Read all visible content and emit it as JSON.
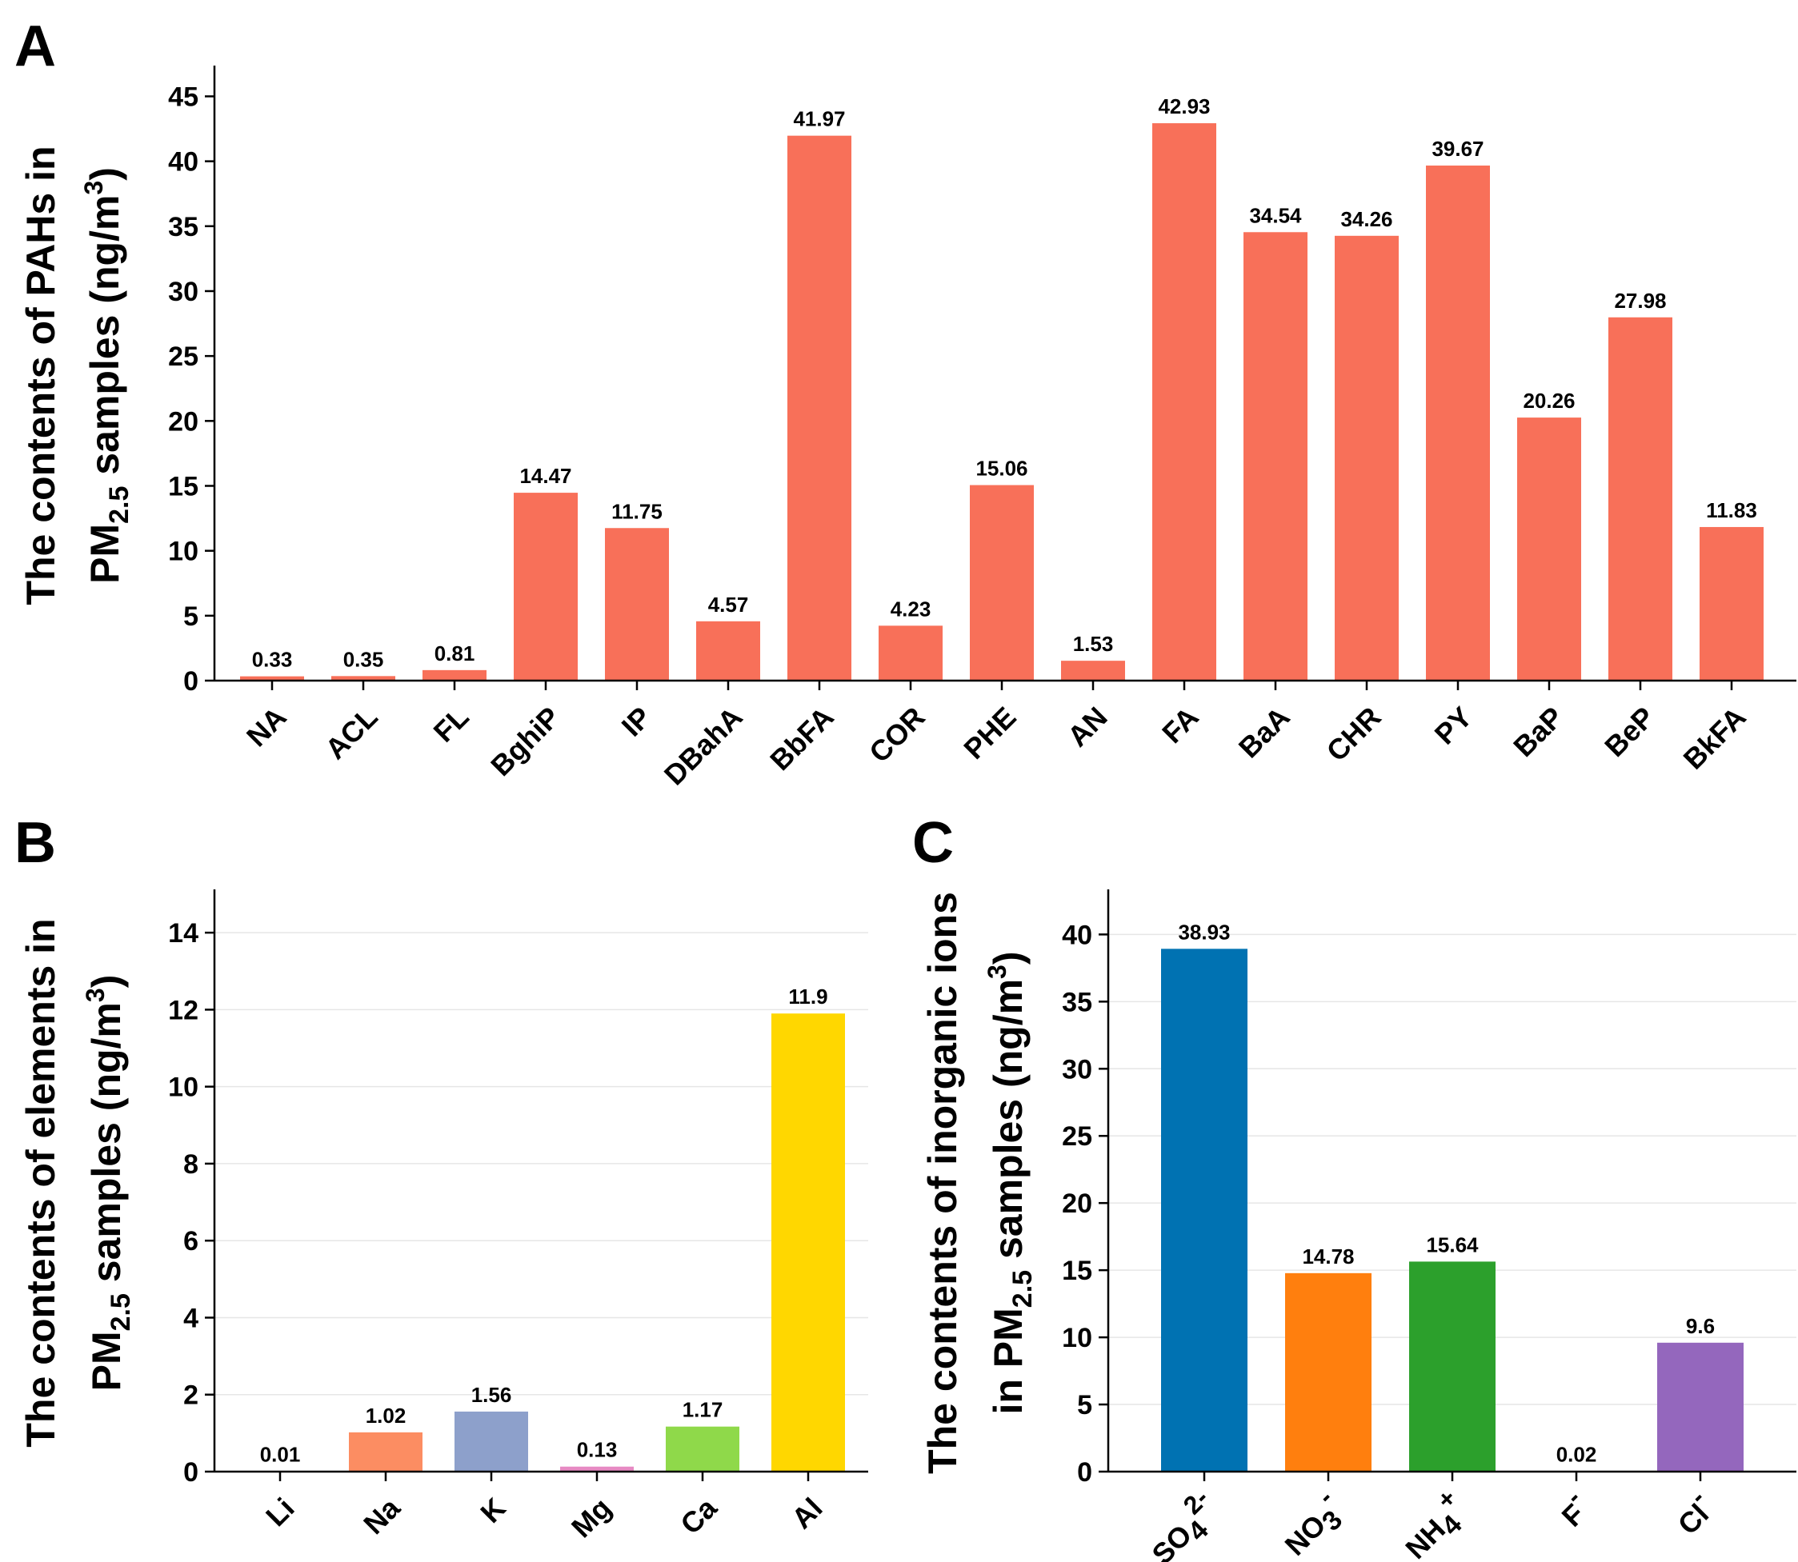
{
  "chart_data": [
    {
      "panel": "A",
      "type": "bar",
      "ylabel_line1": "The contents of PAHs in",
      "ylabel_line2_pre": "PM",
      "ylabel_line2_sub": "2.5",
      "ylabel_line2_mid": " samples (ng/m",
      "ylabel_line2_sup": "3",
      "ylabel_line2_post": ")",
      "ylim": [
        0,
        47
      ],
      "yticks": [
        0,
        5,
        10,
        15,
        20,
        25,
        30,
        35,
        40,
        45
      ],
      "grid": false,
      "bar_color": "#f87059",
      "categories": [
        "NA",
        "ACL",
        "FL",
        "BghiP",
        "IP",
        "DBahA",
        "BbFA",
        "COR",
        "PHE",
        "AN",
        "FA",
        "BaA",
        "CHR",
        "PY",
        "BaP",
        "BeP",
        "BkFA"
      ],
      "values": [
        0.33,
        0.35,
        0.81,
        14.47,
        11.75,
        4.57,
        41.97,
        4.23,
        15.06,
        1.53,
        42.93,
        34.54,
        34.26,
        39.67,
        20.26,
        27.98,
        11.83
      ],
      "data_labels": [
        "0.33",
        "0.35",
        "0.81",
        "14.47",
        "11.75",
        "4.57",
        "41.97",
        "4.23",
        "15.06",
        "1.53",
        "42.93",
        "34.54",
        "34.26",
        "39.67",
        "20.26",
        "27.98",
        "11.83"
      ]
    },
    {
      "panel": "B",
      "type": "bar",
      "ylabel_line1": "The contents of elements in",
      "ylabel_line2_pre": "PM",
      "ylabel_line2_sub": "2.5",
      "ylabel_line2_mid": " samples (ng/m",
      "ylabel_line2_sup": "3",
      "ylabel_line2_post": ")",
      "ylim": [
        0,
        15
      ],
      "yticks": [
        0,
        2,
        4,
        6,
        8,
        10,
        12,
        14
      ],
      "grid": true,
      "categories": [
        "Li",
        "Na",
        "K",
        "Mg",
        "Ca",
        "Al"
      ],
      "values": [
        0.01,
        1.02,
        1.56,
        0.13,
        1.17,
        11.9
      ],
      "data_labels": [
        "0.01",
        "1.02",
        "1.56",
        "0.13",
        "1.17",
        "11.9"
      ],
      "colors": [
        "#8dd3c7",
        "#fc8d62",
        "#8da0cb",
        "#e78ac3",
        "#8fd94a",
        "#ffd700"
      ]
    },
    {
      "panel": "C",
      "type": "bar",
      "ylabel_line1": "The contents of inorganic ions",
      "ylabel_line2_pre": "in PM",
      "ylabel_line2_sub": "2.5",
      "ylabel_line2_mid": " samples (ng/m",
      "ylabel_line2_sup": "3",
      "ylabel_line2_post": ")",
      "ylim": [
        0,
        43
      ],
      "yticks": [
        0,
        5,
        10,
        15,
        20,
        25,
        30,
        35,
        40
      ],
      "grid": true,
      "categories": [
        {
          "base": "SO",
          "sub": "4",
          "sup": "2-"
        },
        {
          "base": "NO",
          "sub": "3",
          "sup": "-"
        },
        {
          "base": "NH",
          "sub": "4",
          "sup": "+"
        },
        {
          "base": "F",
          "sub": "",
          "sup": "-"
        },
        {
          "base": "Cl",
          "sub": "",
          "sup": "-"
        }
      ],
      "values": [
        38.93,
        14.78,
        15.64,
        0.02,
        9.6
      ],
      "data_labels": [
        "38.93",
        "14.78",
        "15.64",
        "0.02",
        "9.6"
      ],
      "colors": [
        "#0072b2",
        "#ff7f0e",
        "#2ca02c",
        "#d62728",
        "#9467bd"
      ]
    }
  ]
}
